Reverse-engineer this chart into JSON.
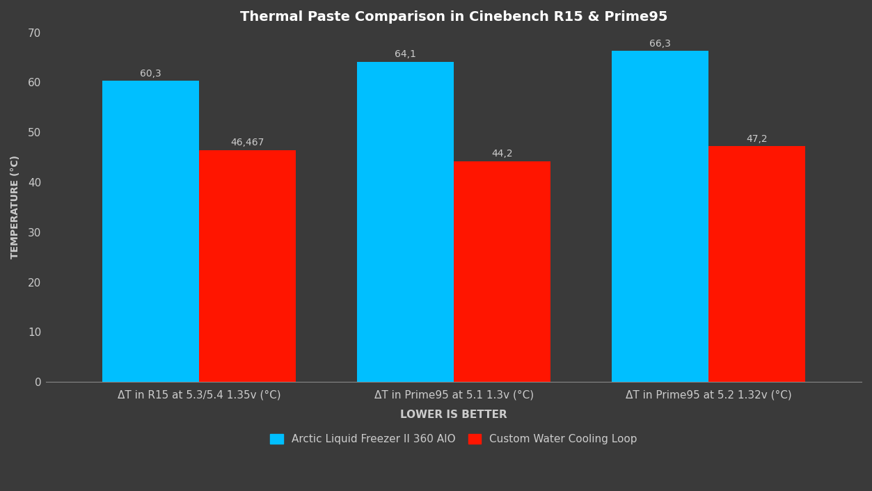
{
  "title": "Thermal Paste Comparison in Cinebench R15 & Prime95",
  "categories": [
    "ΔT in R15 at 5.3/5.4 1.35v (°C)",
    "ΔT in Prime95 at 5.1 1.3v (°C)",
    "ΔT in Prime95 at 5.2 1.32v (°C)"
  ],
  "blue_values": [
    60.3,
    64.1,
    66.3
  ],
  "red_values": [
    46.467,
    44.2,
    47.2
  ],
  "blue_labels": [
    "60,3",
    "64,1",
    "66,3"
  ],
  "red_labels": [
    "46,467",
    "44,2",
    "47,2"
  ],
  "blue_color": "#00BFFF",
  "red_color": "#FF1500",
  "ylabel": "TEMPERATURE (°C)",
  "xlabel": "LOWER IS BETTER",
  "ylim": [
    0,
    70
  ],
  "yticks": [
    0,
    10,
    20,
    30,
    40,
    50,
    60,
    70
  ],
  "background_color": "#3a3a3a",
  "axes_bg_color": "#3a3a3a",
  "text_color": "#cccccc",
  "title_color": "#ffffff",
  "legend_blue": "Arctic Liquid Freezer II 360 AIO",
  "legend_red": "Custom Water Cooling Loop",
  "bar_width": 0.38,
  "group_positions": [
    0,
    1,
    2
  ],
  "title_fontsize": 14,
  "axis_label_fontsize": 10,
  "tick_fontsize": 11,
  "bar_label_fontsize": 10,
  "xlabel_fontsize": 11,
  "xlabel_fontweight": "bold"
}
